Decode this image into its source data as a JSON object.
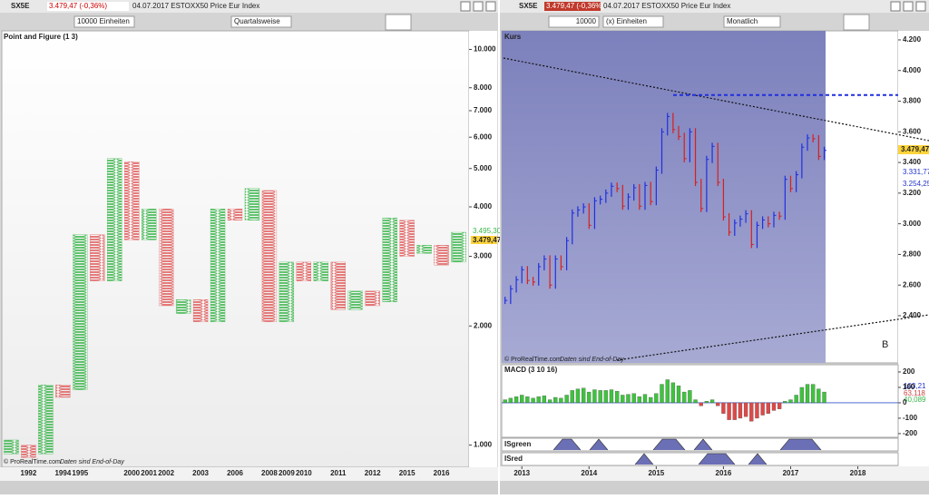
{
  "left": {
    "symbol": "SX5E",
    "quote": "3.479,47 (-0,36%)",
    "info": "04.07.2017 ESTOXX50 Price Eur Index",
    "units": "10000 Einheiten",
    "period": "Quartalsweise",
    "copyright": "© ProRealTime.com",
    "eod": "Daten sind End-of-Day",
    "tags": [
      "3.495,30",
      "3.479,47"
    ]
  },
  "right": {
    "symbol": "SX5E",
    "quote": "3.479,47 (-0,36%)",
    "info": "04.07.2017 ESTOXX50 Price Eur Index",
    "amount": "10000",
    "units": "(x) Einheiten",
    "period": "Monatlich",
    "panel": "Kurs",
    "marker": "B",
    "copyright": "© ProRealTime.com",
    "eod": "Daten sind End-of-Day",
    "tags": [
      "3.479,47",
      "3.331,77",
      "3.254,25"
    ],
    "macd_tags": [
      "103,21",
      "63,118",
      "40,089"
    ],
    "isgreen": "ISgreen",
    "isred": "ISred"
  },
  "chart_data": [
    {
      "type": "pointfigure",
      "title": "Point and Figure (1 3)",
      "log_scale": true,
      "categories": [
        null,
        "1992",
        null,
        "1994",
        "1995",
        null,
        null,
        "2000",
        "2001",
        "2002",
        null,
        "2003",
        null,
        "2006",
        null,
        "2008",
        "2009",
        "2010",
        null,
        "2011",
        null,
        "2012",
        null,
        "2015",
        null,
        "2016",
        null
      ],
      "kinds": [
        "X",
        "O",
        "X",
        "O",
        "X",
        "O",
        "X",
        "O",
        "X",
        "O",
        "X",
        "O",
        "X",
        "O",
        "X",
        "O",
        "X",
        "O",
        "X",
        "O",
        "X",
        "O",
        "X",
        "O",
        "X",
        "O",
        "X"
      ],
      "lows": [
        950,
        930,
        950,
        1320,
        1380,
        2600,
        2600,
        3300,
        3300,
        2250,
        2150,
        2050,
        2050,
        3700,
        3700,
        2050,
        2050,
        2600,
        2600,
        2200,
        2200,
        2250,
        2300,
        3000,
        3050,
        2850,
        2900
      ],
      "highs": [
        1030,
        1000,
        1420,
        1420,
        3400,
        3400,
        5300,
        5200,
        3950,
        3950,
        2330,
        2330,
        3950,
        3950,
        4450,
        4400,
        2900,
        2900,
        2900,
        2900,
        2450,
        2450,
        3750,
        3700,
        3200,
        3200,
        3450
      ],
      "colors": {
        "X": "#39b54a",
        "O": "#e05a5a"
      },
      "ylim": [
        879,
        11140
      ],
      "yticks": [
        {
          "value": 1000,
          "label": "1.000"
        },
        {
          "value": 2000,
          "label": "2.000"
        },
        {
          "value": 3000,
          "label": "3.000"
        },
        {
          "value": 4000,
          "label": "4.000"
        },
        {
          "value": 5000,
          "label": "5.000"
        },
        {
          "value": 6000,
          "label": "6.000"
        },
        {
          "value": 7000,
          "label": "7.000"
        },
        {
          "value": 8000,
          "label": "8.000"
        },
        {
          "value": 10000,
          "label": "10.000"
        }
      ]
    },
    {
      "type": "pricebars",
      "x": [
        2012.75,
        2012.833,
        2012.917,
        2013,
        2013.083,
        2013.167,
        2013.25,
        2013.333,
        2013.417,
        2013.5,
        2013.583,
        2013.667,
        2013.75,
        2013.833,
        2013.917,
        2014,
        2014.083,
        2014.167,
        2014.25,
        2014.333,
        2014.417,
        2014.5,
        2014.583,
        2014.667,
        2014.75,
        2014.833,
        2014.917,
        2015,
        2015.083,
        2015.167,
        2015.25,
        2015.333,
        2015.417,
        2015.5,
        2015.583,
        2015.667,
        2015.75,
        2015.833,
        2015.917,
        2016,
        2016.083,
        2016.167,
        2016.25,
        2016.333,
        2016.417,
        2016.5,
        2016.583,
        2016.667,
        2016.75,
        2016.833,
        2016.917,
        2017,
        2017.083,
        2017.167,
        2017.25,
        2017.333,
        2017.417,
        2017.5
      ],
      "values": [
        2500,
        2575,
        2635,
        2700,
        2630,
        2620,
        2720,
        2770,
        2600,
        2770,
        2720,
        2890,
        3070,
        3090,
        3110,
        2990,
        3150,
        3160,
        3200,
        3245,
        3230,
        3115,
        3175,
        3235,
        3115,
        3250,
        3145,
        3350,
        3600,
        3700,
        3615,
        3570,
        3425,
        3600,
        3270,
        3100,
        3420,
        3505,
        3270,
        3045,
        2945,
        3005,
        3030,
        3065,
        2865,
        2990,
        3025,
        3000,
        3055,
        3050,
        3290,
        3230,
        3320,
        3500,
        3560,
        3555,
        3440,
        3479
      ],
      "colors": {
        "up": "#1f2fe0",
        "down": "#d42020"
      },
      "hline": 3840,
      "xlim": [
        2012.7,
        2018.6
      ],
      "xticks": [
        2013,
        2014,
        2015,
        2016,
        2017,
        2018
      ],
      "ylim": [
        2092,
        4259
      ],
      "yticks": [
        {
          "value": 2400,
          "label": "2.400"
        },
        {
          "value": 2600,
          "label": "2.600"
        },
        {
          "value": 2800,
          "label": "2.800"
        },
        {
          "value": 3000,
          "label": "3.000"
        },
        {
          "value": 3200,
          "label": "3.200"
        },
        {
          "value": 3400,
          "label": "3.400"
        },
        {
          "value": 3600,
          "label": "3.600"
        },
        {
          "value": 3800,
          "label": "3.800"
        },
        {
          "value": 4000,
          "label": "4.000"
        },
        {
          "value": 4200,
          "label": "4.200"
        }
      ]
    },
    {
      "type": "histogram_macd",
      "title": "MACD (3 10 16)",
      "values": [
        20,
        30,
        40,
        50,
        40,
        30,
        40,
        45,
        20,
        35,
        30,
        50,
        80,
        90,
        95,
        70,
        85,
        80,
        80,
        85,
        75,
        50,
        55,
        60,
        40,
        55,
        35,
        60,
        120,
        150,
        130,
        110,
        70,
        80,
        20,
        -20,
        10,
        20,
        -20,
        -70,
        -110,
        -110,
        -100,
        -90,
        -120,
        -100,
        -80,
        -70,
        -50,
        -40,
        10,
        20,
        50,
        100,
        120,
        120,
        90,
        70
      ],
      "colors": {
        "up": "#3ec43e",
        "down": "#e04848"
      },
      "ylim": [
        -224,
        247
      ],
      "yticks": [
        200,
        100,
        0,
        -100,
        -200
      ]
    }
  ]
}
